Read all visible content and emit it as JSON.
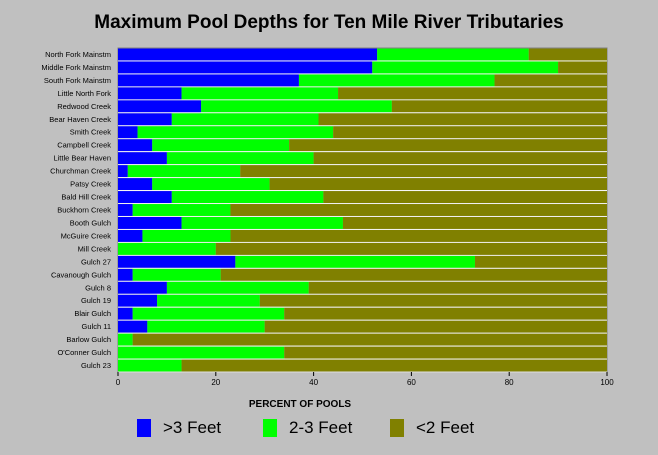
{
  "chart_data": {
    "type": "bar",
    "orientation": "horizontal",
    "stacked": true,
    "title": "Maximum Pool Depths for Ten Mile River Tributaries",
    "xlabel": "PERCENT OF POOLS",
    "ylabel": "",
    "xlim": [
      0,
      100
    ],
    "xticks": [
      0,
      20,
      40,
      60,
      80,
      100
    ],
    "grid": false,
    "legend_position": "bottom",
    "categories": [
      "North Fork Mainstm",
      "Middle Fork Mainstm",
      "South Fork Mainstm",
      "Little North Fork",
      "Redwood Creek",
      "Bear Haven Creek",
      "Smith Creek",
      "Campbell Creek",
      "Little Bear Haven",
      "Churchman Creek",
      "Patsy Creek",
      "Bald Hill Creek",
      "Buckhorn Creek",
      "Booth Gulch",
      "McGuire Creek",
      "Mill Creek",
      "Gulch 27",
      "Cavanough Gulch",
      "Gulch 8",
      "Gulch 19",
      "Blair Gulch",
      "Gulch 11",
      "Barlow Gulch",
      "O'Conner Gulch",
      "Gulch 23"
    ],
    "series": [
      {
        "name": ">3 Feet",
        "color": "#0000ff",
        "values": [
          53,
          52,
          37,
          13,
          17,
          11,
          4,
          7,
          10,
          2,
          7,
          11,
          3,
          13,
          5,
          0,
          24,
          3,
          10,
          8,
          3,
          6,
          0,
          0,
          0
        ]
      },
      {
        "name": "2-3 Feet",
        "color": "#00ff00",
        "values": [
          31,
          38,
          40,
          32,
          39,
          30,
          40,
          28,
          30,
          23,
          24,
          31,
          20,
          33,
          18,
          20,
          49,
          18,
          29,
          21,
          31,
          24,
          3,
          34,
          13
        ]
      },
      {
        "name": "<2 Feet",
        "color": "#808000",
        "values": [
          16,
          10,
          23,
          55,
          44,
          59,
          56,
          65,
          60,
          75,
          69,
          58,
          77,
          54,
          77,
          80,
          27,
          79,
          61,
          71,
          66,
          70,
          97,
          66,
          87
        ]
      }
    ]
  },
  "colors": {
    "background": "#c0c0c0",
    "plot_border": "#808080"
  }
}
